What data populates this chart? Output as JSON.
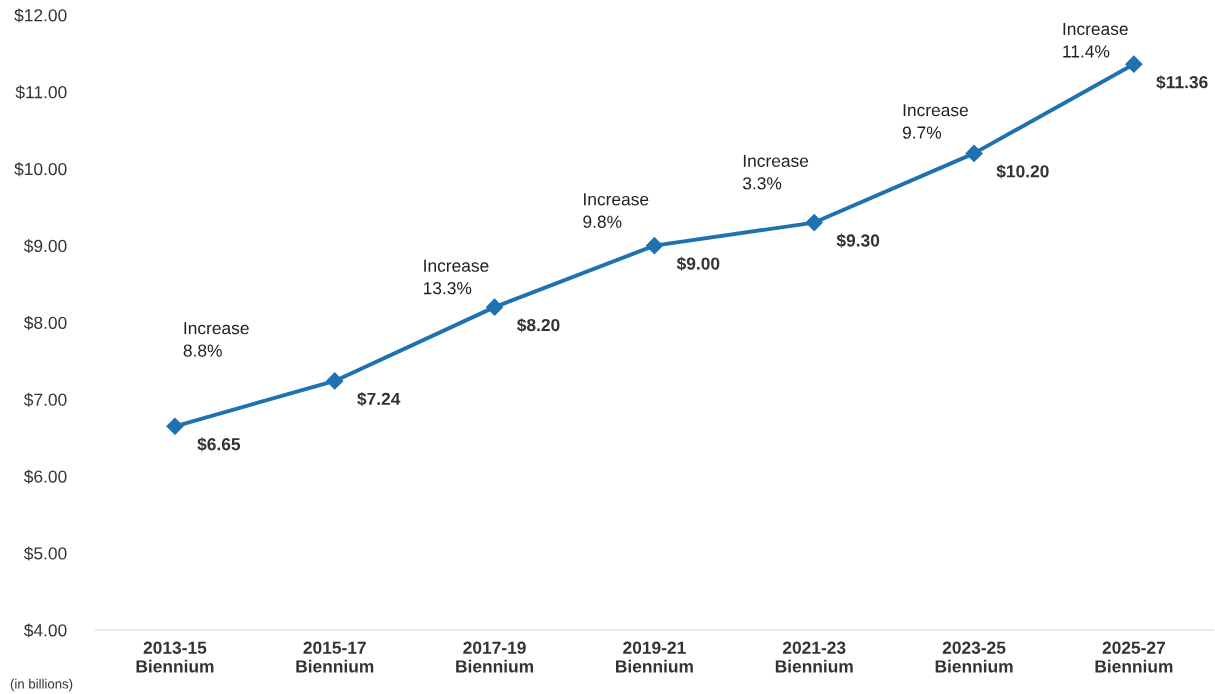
{
  "chart_data": {
    "type": "line",
    "categories": [
      "2013-15\nBiennium",
      "2015-17\nBiennium",
      "2017-19\nBiennium",
      "2019-21\nBiennium",
      "2021-23\nBiennium",
      "2023-25\nBiennium",
      "2025-27\nBiennium"
    ],
    "series": [
      {
        "color": "#1f72b0",
        "values": [
          6.65,
          7.24,
          8.2,
          9.0,
          9.3,
          10.2,
          11.36
        ],
        "value_labels": [
          "$6.65",
          "$7.24",
          "$8.20",
          "$9.00",
          "$9.30",
          "$10.20",
          "$11.36"
        ]
      }
    ],
    "ylim": [
      4,
      12
    ],
    "yticks": [
      {
        "value": 4,
        "label": "$4.00"
      },
      {
        "value": 5,
        "label": "$5.00"
      },
      {
        "value": 6,
        "label": "$6.00"
      },
      {
        "value": 7,
        "label": "$7.00"
      },
      {
        "value": 8,
        "label": "$8.00"
      },
      {
        "value": 9,
        "label": "$9.00"
      },
      {
        "value": 10,
        "label": "$10.00"
      },
      {
        "value": 11,
        "label": "$11.00"
      },
      {
        "value": 12,
        "label": "$12.00"
      }
    ],
    "marker": "diamond",
    "line_style": "solid",
    "grid": false,
    "legend": false,
    "annotations": [
      "Increase\n8.8%",
      "Increase\n13.3%",
      "Increase\n9.8%",
      "Increase\n3.3%",
      "Increase\n9.7%",
      "Increase\n11.4%",
      "(in billions)"
    ]
  }
}
